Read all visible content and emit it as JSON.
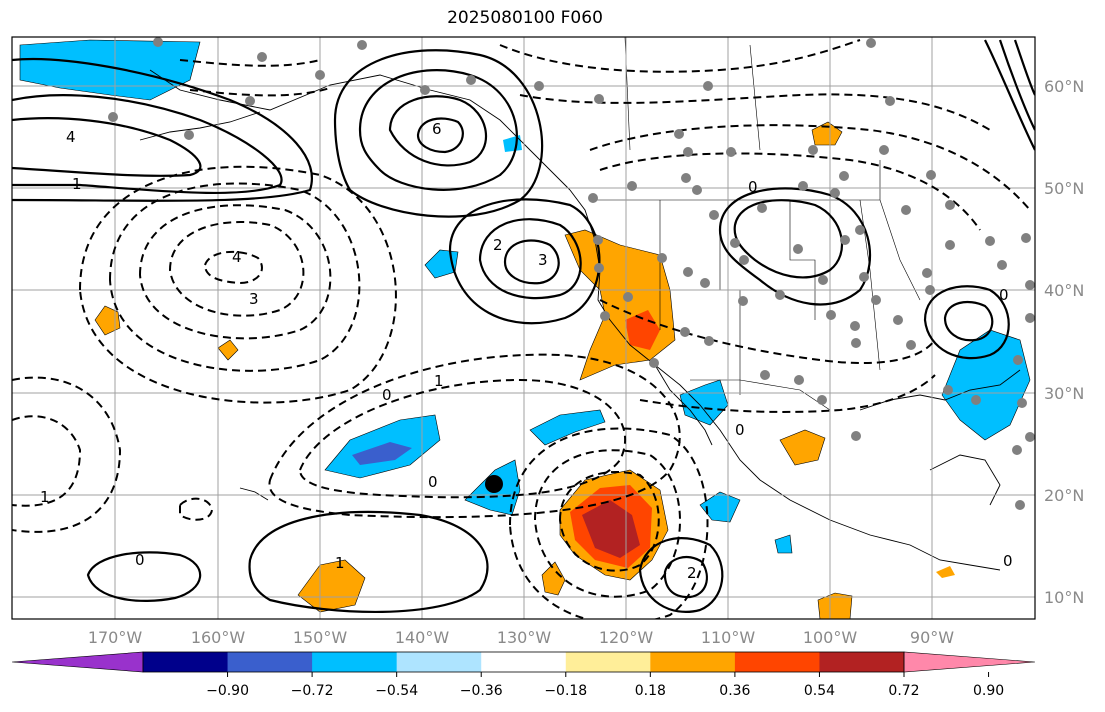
{
  "title": "2025080100 F060",
  "lon_ticks": [
    "170°W",
    "160°W",
    "150°W",
    "140°W",
    "130°W",
    "120°W",
    "110°W",
    "100°W",
    "90°W"
  ],
  "lat_ticks": [
    "60°N",
    "50°N",
    "40°N",
    "30°N",
    "20°N",
    "10°N"
  ],
  "colorbar": {
    "colors": [
      "#9932cc",
      "#00008b",
      "#3a5fcd",
      "#00bfff",
      "#aee4ff",
      "#ffffff",
      "#ffee99",
      "#ffa500",
      "#ff4500",
      "#b22222",
      "#ff88aa"
    ],
    "labels": [
      "−0.90",
      "−0.72",
      "−0.54",
      "−0.36",
      "−0.18",
      "0.18",
      "0.36",
      "0.54",
      "0.72",
      "0.90"
    ]
  },
  "contour_labels": [
    "0",
    "1",
    "2",
    "3",
    "4",
    "6",
    "0",
    "1",
    "2",
    "3",
    "4",
    "2",
    "1",
    "0"
  ],
  "marker": {
    "lon": "133°W",
    "lat": "21°N"
  },
  "colors": {
    "background": "#ffffff",
    "grid": "#a0a0a0",
    "contour": "#000000",
    "station": "#808080"
  }
}
